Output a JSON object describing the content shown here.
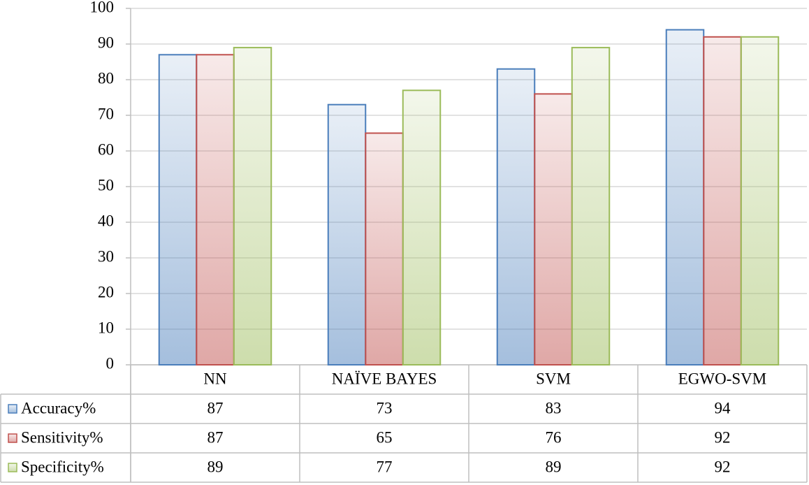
{
  "chart_data": {
    "type": "bar",
    "categories": [
      "NN",
      "NAÏVE BAYES",
      "SVM",
      "EGWO-SVM"
    ],
    "series": [
      {
        "name": "Accuracy%",
        "color": "#4a7ebb",
        "values": [
          87,
          73,
          83,
          94
        ]
      },
      {
        "name": "Sensitivity%",
        "color": "#c0504d",
        "values": [
          87,
          65,
          76,
          92
        ]
      },
      {
        "name": "Specificity%",
        "color": "#9bbb59",
        "values": [
          89,
          77,
          89,
          92
        ]
      }
    ],
    "ylim": [
      0,
      100
    ],
    "yticks": [
      0,
      10,
      20,
      30,
      40,
      50,
      60,
      70,
      80,
      90,
      100
    ],
    "grid": true
  }
}
